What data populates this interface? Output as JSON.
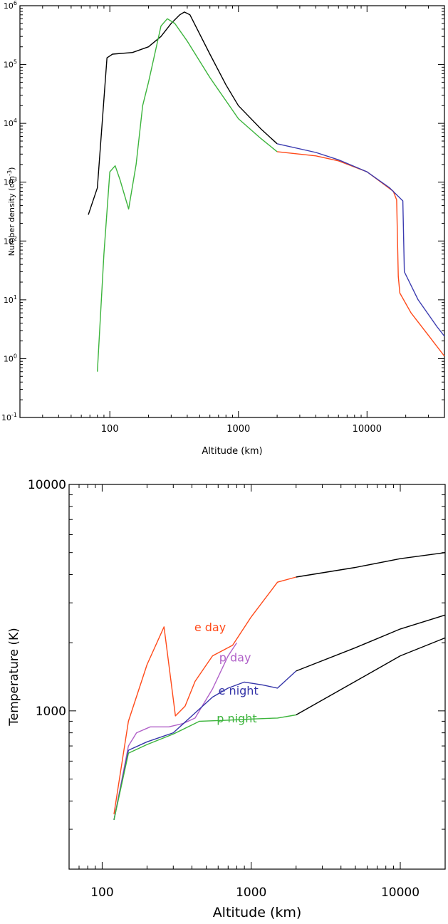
{
  "chart_data": [
    {
      "type": "line",
      "xlabel": "Altitude (km)",
      "ylabel_main": "Number density (cm",
      "ylabel_sup": "-3",
      "ylabel_close": ")",
      "x_scale": "log",
      "y_scale": "log",
      "xlim": [
        20,
        40000
      ],
      "ylim": [
        0.1,
        1000000
      ],
      "xticks": [
        100,
        1000,
        10000
      ],
      "xtick_labels": [
        "100",
        "1000",
        "10000"
      ],
      "yticks": [
        0.1,
        1,
        10,
        100,
        1000,
        10000,
        100000,
        1000000
      ],
      "ytick_base": "10",
      "ytick_exponents": [
        "-1",
        "0",
        "1",
        "2",
        "3",
        "4",
        "5",
        "6"
      ],
      "grid": false,
      "series": [
        {
          "color": "#000000",
          "points": [
            [
              68,
              280
            ],
            [
              80,
              800
            ],
            [
              95,
              130000
            ],
            [
              105,
              150000
            ],
            [
              150,
              160000
            ],
            [
              200,
              200000
            ],
            [
              250,
              300000
            ],
            [
              300,
              500000
            ],
            [
              350,
              700000
            ],
            [
              380,
              780000
            ],
            [
              420,
              700000
            ],
            [
              600,
              150000
            ],
            [
              800,
              45000
            ],
            [
              1000,
              20000
            ],
            [
              1500,
              8000
            ],
            [
              2000,
              4500
            ]
          ]
        },
        {
          "color": "#3cb43c",
          "points": [
            [
              80,
              0.6
            ],
            [
              90,
              60
            ],
            [
              100,
              1500
            ],
            [
              110,
              1900
            ],
            [
              120,
              1100
            ],
            [
              140,
              350
            ],
            [
              160,
              2000
            ],
            [
              180,
              20000
            ],
            [
              200,
              50000
            ],
            [
              250,
              450000
            ],
            [
              280,
              600000
            ],
            [
              320,
              500000
            ],
            [
              400,
              250000
            ],
            [
              600,
              60000
            ],
            [
              1000,
              12000
            ],
            [
              1500,
              5500
            ],
            [
              2000,
              3300
            ]
          ]
        },
        {
          "color": "#ff4a1a",
          "points": [
            [
              2000,
              3300
            ],
            [
              4000,
              2800
            ],
            [
              6000,
              2300
            ],
            [
              10000,
              1500
            ],
            [
              16000,
              700
            ],
            [
              17000,
              500
            ],
            [
              17500,
              25
            ],
            [
              18000,
              13
            ],
            [
              22000,
              6
            ],
            [
              30000,
              2.5
            ],
            [
              40000,
              1.1
            ]
          ]
        },
        {
          "color": "#3b3bb0",
          "points": [
            [
              2000,
              4500
            ],
            [
              4000,
              3200
            ],
            [
              6000,
              2400
            ],
            [
              10000,
              1500
            ],
            [
              15000,
              800
            ],
            [
              19000,
              480
            ],
            [
              19500,
              30
            ],
            [
              25000,
              10
            ],
            [
              35000,
              3.5
            ],
            [
              40000,
              2.4
            ]
          ]
        }
      ]
    },
    {
      "type": "line",
      "xlabel": "Altitude (km)",
      "ylabel": "Temperature (K)",
      "x_scale": "log",
      "y_scale": "log",
      "xlim": [
        60,
        20000
      ],
      "ylim": [
        200,
        10000
      ],
      "xticks": [
        100,
        1000,
        10000
      ],
      "xtick_labels": [
        "100",
        "1000",
        "10000"
      ],
      "yticks": [
        1000,
        10000
      ],
      "ytick_labels": [
        "1000",
        "10000"
      ],
      "grid": false,
      "series": [
        {
          "name": "e day",
          "color": "#ff4a1a",
          "label_at": [
            530,
            2250
          ],
          "points": [
            [
              120,
              350
            ],
            [
              150,
              900
            ],
            [
              200,
              1600
            ],
            [
              260,
              2350
            ],
            [
              310,
              950
            ],
            [
              360,
              1050
            ],
            [
              420,
              1350
            ],
            [
              550,
              1750
            ],
            [
              750,
              1950
            ],
            [
              1000,
              2600
            ],
            [
              1500,
              3700
            ],
            [
              2000,
              3900
            ]
          ]
        },
        {
          "name": "p day",
          "color": "#b060c8",
          "label_at": [
            780,
            1650
          ],
          "points": [
            [
              120,
              330
            ],
            [
              150,
              700
            ],
            [
              170,
              800
            ],
            [
              210,
              850
            ],
            [
              280,
              850
            ],
            [
              350,
              880
            ],
            [
              420,
              930
            ],
            [
              550,
              1250
            ],
            [
              700,
              1750
            ],
            [
              800,
              2000
            ]
          ]
        },
        {
          "name": "e night",
          "color": "#3434a8",
          "label_at": [
            820,
            1180
          ],
          "points": [
            [
              120,
              330
            ],
            [
              150,
              670
            ],
            [
              200,
              730
            ],
            [
              300,
              800
            ],
            [
              400,
              950
            ],
            [
              550,
              1150
            ],
            [
              700,
              1260
            ],
            [
              900,
              1340
            ],
            [
              1200,
              1300
            ],
            [
              1500,
              1260
            ],
            [
              2000,
              1500
            ]
          ]
        },
        {
          "name": "p night",
          "color": "#3cb43c",
          "label_at": [
            800,
            890
          ],
          "points": [
            [
              120,
              330
            ],
            [
              150,
              650
            ],
            [
              200,
              710
            ],
            [
              300,
              790
            ],
            [
              450,
              900
            ],
            [
              700,
              910
            ],
            [
              1000,
              920
            ],
            [
              1500,
              930
            ],
            [
              2000,
              960
            ]
          ]
        },
        {
          "color": "#000000",
          "points": [
            [
              2000,
              3900
            ],
            [
              5000,
              4300
            ],
            [
              10000,
              4700
            ],
            [
              20000,
              5000
            ]
          ]
        },
        {
          "color": "#000000",
          "points": [
            [
              2000,
              1500
            ],
            [
              5000,
              1900
            ],
            [
              10000,
              2300
            ],
            [
              20000,
              2650
            ]
          ]
        },
        {
          "color": "#000000",
          "points": [
            [
              2000,
              960
            ],
            [
              5000,
              1350
            ],
            [
              10000,
              1750
            ],
            [
              20000,
              2100
            ]
          ]
        }
      ]
    }
  ]
}
